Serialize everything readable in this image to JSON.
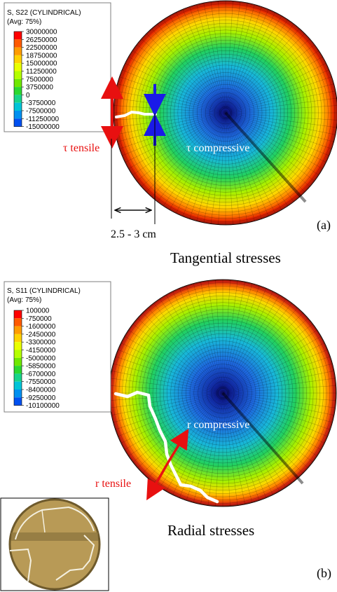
{
  "panel_a": {
    "legend": {
      "title_line1": "S, S22 (CYLINDRICAL)",
      "title_line2": "(Avg: 75%)",
      "values": [
        "30000000",
        "26250000",
        "22500000",
        "18750000",
        "15000000",
        "11250000",
        "7500000",
        "3750000",
        "0",
        "-3750000",
        "-7500000",
        "-11250000",
        "-15000000"
      ]
    },
    "tau_tensile": "τ tensile",
    "tau_compressive": "τ compressive",
    "dimension": "2.5 - 3 cm",
    "tag": "(a)",
    "caption": "Tangential stresses"
  },
  "panel_b": {
    "legend": {
      "title_line1": "S, S11 (CYLINDRICAL)",
      "title_line2": "(Avg: 75%)",
      "values": [
        "100000",
        "-750000",
        "-1600000",
        "-2450000",
        "-3300000",
        "-4150000",
        "-5000000",
        "-5850000",
        "-6700000",
        "-7550000",
        "-8400000",
        "-9250000",
        "-10100000"
      ]
    },
    "r_tensile": "r tensile",
    "r_compressive": "r compressive",
    "tag": "(b)",
    "caption": "Radial stresses"
  },
  "colors": {
    "contour_scale": [
      "#ff0000",
      "#ff5a00",
      "#ff9c00",
      "#ffd200",
      "#e9ff00",
      "#b4ff00",
      "#6fe800",
      "#2bd830",
      "#17d48a",
      "#00c4d8",
      "#0090f0",
      "#0050f0",
      "#0000e0"
    ],
    "tensile_arrow": "#e81010",
    "compressive_arrow": "#1a1ae8",
    "crack": "#ffffff",
    "photo_bg": "#b89a56"
  }
}
